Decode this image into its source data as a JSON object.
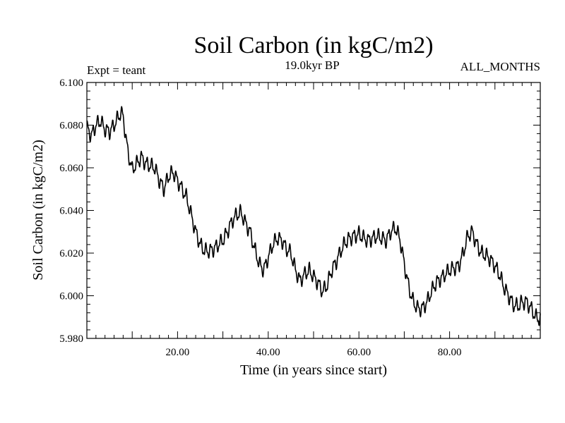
{
  "chart_data": {
    "type": "line",
    "title": "Soil Carbon (in kgC/m2)",
    "subtitle": "19.0kyr BP",
    "left_label": "Expt = teant",
    "right_label": "ALL_MONTHS",
    "xlabel": "Time (in years since start)",
    "ylabel": "Soil Carbon (in kgC/m2)",
    "xlim": [
      0,
      100
    ],
    "ylim": [
      5.98,
      6.1
    ],
    "x_ticks": [
      20,
      40,
      60,
      80
    ],
    "x_tick_labels": [
      "20.00",
      "40.00",
      "60.00",
      "80.00"
    ],
    "y_ticks": [
      5.98,
      6.0,
      6.02,
      6.04,
      6.06,
      6.08,
      6.1
    ],
    "y_tick_labels": [
      "5.980",
      "6.000",
      "6.020",
      "6.040",
      "6.060",
      "6.080",
      "6.100"
    ],
    "grid": false,
    "series": [
      {
        "name": "Soil Carbon",
        "color": "#000000",
        "x": [
          0,
          1,
          2,
          3,
          4,
          5,
          6,
          7,
          7.5,
          8,
          9,
          10,
          11,
          12,
          13,
          14,
          15,
          16,
          17,
          18,
          19,
          20,
          21,
          22,
          23,
          24,
          25,
          26,
          27,
          28,
          29,
          30,
          31,
          32,
          33,
          34,
          35,
          36,
          37,
          38,
          39,
          40,
          41,
          42,
          43,
          44,
          45,
          46,
          47,
          48,
          49,
          50,
          51,
          52,
          53,
          54,
          55,
          56,
          57,
          58,
          59,
          60,
          61,
          62,
          63,
          64,
          65,
          66,
          67,
          68,
          69,
          70,
          71,
          72,
          73,
          74,
          75,
          76,
          77,
          78,
          79,
          80,
          81,
          82,
          83,
          84,
          85,
          86,
          87,
          88,
          89,
          90,
          91,
          92,
          93,
          94,
          95,
          96,
          97,
          98,
          99,
          100
        ],
        "values": [
          6.079,
          6.075,
          6.08,
          6.082,
          6.078,
          6.077,
          6.08,
          6.084,
          6.086,
          6.084,
          6.068,
          6.059,
          6.062,
          6.065,
          6.062,
          6.061,
          6.06,
          6.054,
          6.05,
          6.056,
          6.058,
          6.054,
          6.05,
          6.046,
          6.038,
          6.03,
          6.024,
          6.021,
          6.021,
          6.022,
          6.024,
          6.026,
          6.03,
          6.035,
          6.038,
          6.039,
          6.034,
          6.03,
          6.022,
          6.015,
          6.012,
          6.018,
          6.024,
          6.027,
          6.026,
          6.022,
          6.02,
          6.012,
          6.007,
          6.01,
          6.012,
          6.009,
          6.006,
          6.002,
          6.005,
          6.012,
          6.016,
          6.021,
          6.025,
          6.027,
          6.028,
          6.029,
          6.027,
          6.026,
          6.027,
          6.028,
          6.027,
          6.026,
          6.03,
          6.032,
          6.027,
          6.015,
          6.004,
          5.997,
          5.994,
          5.994,
          5.997,
          6.002,
          6.006,
          6.008,
          6.01,
          6.012,
          6.013,
          6.014,
          6.02,
          6.028,
          6.03,
          6.024,
          6.02,
          6.019,
          6.017,
          6.014,
          6.01,
          6.004,
          6.0,
          5.996,
          5.995,
          5.997,
          5.997,
          5.994,
          5.99,
          5.989
        ]
      }
    ]
  }
}
